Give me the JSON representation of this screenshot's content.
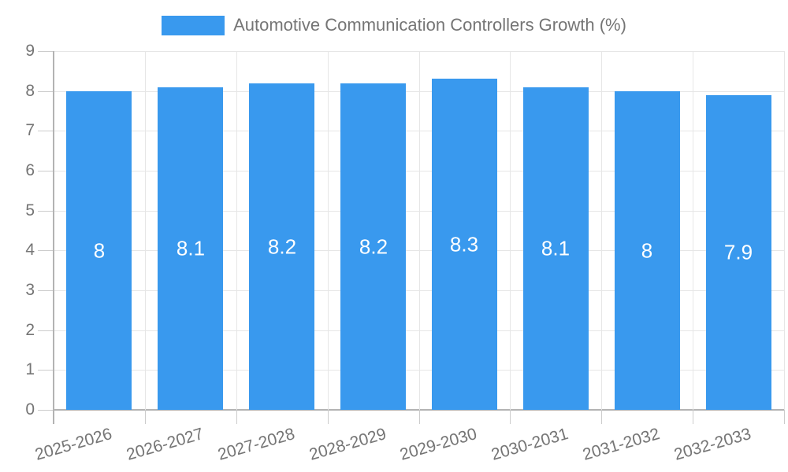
{
  "legend": {
    "label": "Automotive Communication Controllers Growth (%)"
  },
  "colors": {
    "bar": "#3999ee",
    "grid": "#e6e6e6",
    "axis": "#b3b3b3",
    "tick": "#cccccc",
    "axis_text": "#757575",
    "bar_label_text": "#ffffff",
    "background": "#ffffff"
  },
  "chart_data": {
    "type": "bar",
    "title": "Automotive Communication Controllers Growth (%)",
    "categories": [
      "2025-2026",
      "2026-2027",
      "2027-2028",
      "2028-2029",
      "2029-2030",
      "2030-2031",
      "2031-2032",
      "2032-2033"
    ],
    "values": [
      8,
      8.1,
      8.2,
      8.2,
      8.3,
      8.1,
      8,
      7.9
    ],
    "bar_labels": [
      "8",
      "8.1",
      "8.2",
      "8.2",
      "8.3",
      "8.1",
      "8",
      "7.9"
    ],
    "xlabel": "",
    "ylabel": "",
    "ylim": [
      0,
      9
    ],
    "ytick_step": 1,
    "ytick_labels": [
      "0",
      "1",
      "2",
      "3",
      "4",
      "5",
      "6",
      "7",
      "8",
      "9"
    ],
    "grid": true,
    "legend_position": "top"
  }
}
